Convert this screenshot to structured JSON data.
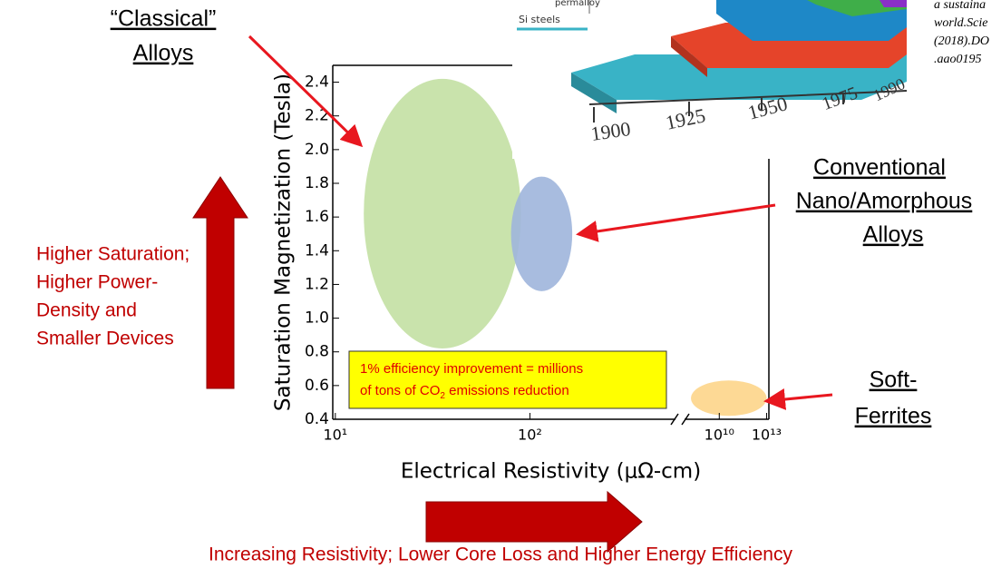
{
  "chart_data": {
    "type": "ellipse",
    "xlabel": "Electrical Resistivity (μΩ-cm)",
    "ylabel": "Saturation Magnetization (Tesla)",
    "xscale": "log",
    "xlim": [
      9.7,
      14000000000000.0
    ],
    "x_break": [
      560,
      63000000.0
    ],
    "xticks": [
      {
        "value": 10,
        "label": "10¹"
      },
      {
        "value": 100,
        "label": "10²"
      },
      {
        "value": 10000000000.0,
        "label": "10¹⁰"
      },
      {
        "value": 10000000000000.0,
        "label": "10¹³"
      }
    ],
    "ylim": [
      0.4,
      2.5
    ],
    "yticks": [
      0.4,
      0.6,
      0.8,
      {
        "value": 1,
        "label": "1.0"
      },
      1.2,
      1.4,
      1.6,
      1.8,
      {
        "value": 2,
        "label": "2.0"
      },
      2.2,
      2.4
    ],
    "regions": [
      {
        "color": "#c3e0a3",
        "xrange": [
          14,
          90
        ],
        "yrange": [
          0.82,
          2.42
        ]
      },
      {
        "color": "#9fb5dc",
        "xrange": [
          80,
          165
        ],
        "yrange": [
          1.16,
          1.84
        ]
      },
      {
        "color": "#fdd58a",
        "xrange": [
          160000000.0,
          10000000000000.0
        ],
        "yrange": [
          0.42,
          0.63
        ]
      }
    ],
    "note": [
      "1%  efficiency improvement = millions",
      "of tons of CO",
      "2",
      " emissions reduction"
    ]
  },
  "slide": {
    "classical": [
      "“Classical”",
      "Alloys"
    ],
    "conventional": [
      "Conventional",
      "Nano/Amorphous",
      "Alloys"
    ],
    "ferrites": [
      "Soft-",
      "Ferrites"
    ],
    "saturation": [
      "Higher Saturation;",
      "Higher Power-",
      "Density and",
      "Smaller Devices"
    ],
    "resistivity": "Increasing Resistivity; Lower Core Loss and Higher Energy Efficiency",
    "inset": {
      "years": [
        "1900",
        "1925",
        "1950",
        "1975",
        "1990"
      ],
      "labels": [
        "permalloy",
        "Si steels"
      ],
      "citation": [
        "a sustaina",
        "world.Scie",
        "(2018).DO",
        ".aao0195"
      ]
    }
  }
}
